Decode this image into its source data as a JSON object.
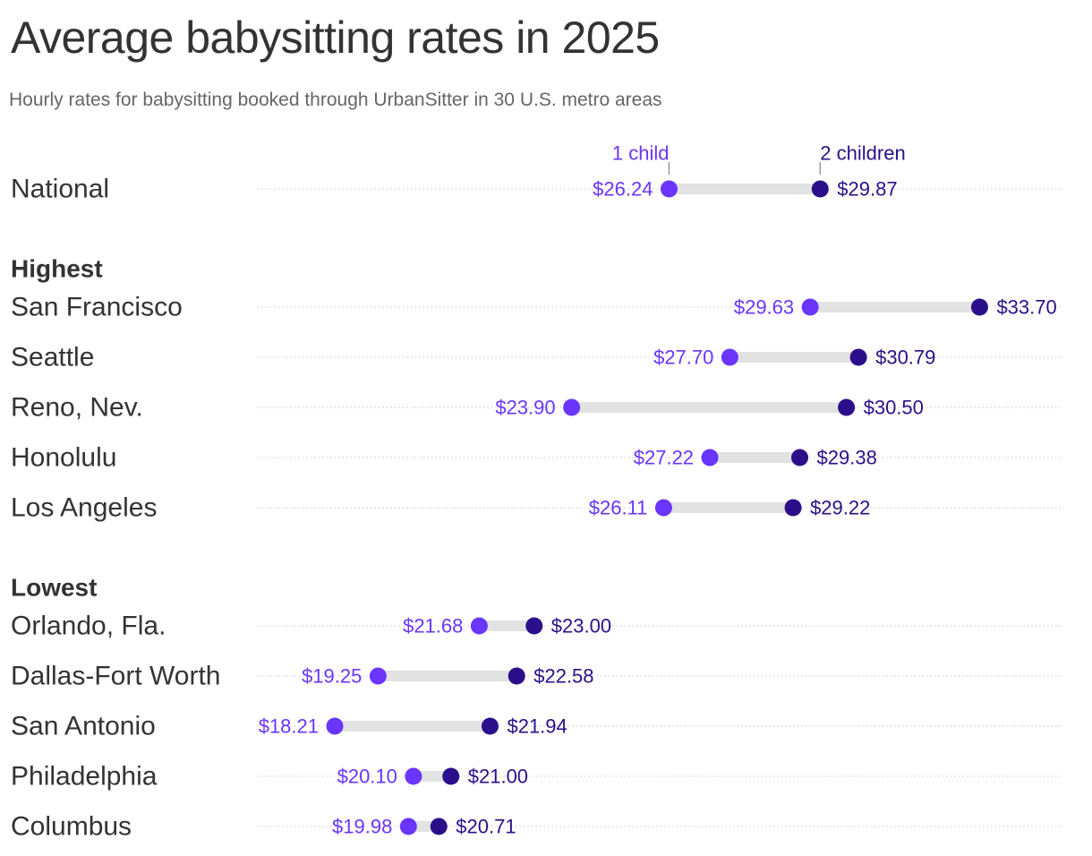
{
  "title": "Average babysitting rates in 2025",
  "subtitle": "Hourly rates for babysitting booked through UrbanSitter in 30 U.S. metro areas",
  "colors": {
    "one_child": "#6a35ff",
    "two_children": "#2b0f8a",
    "bar": "#e2e2e2",
    "gridline": "#c8c8c8",
    "text": "#333333"
  },
  "chart_data": {
    "type": "dumbbell",
    "series": [
      {
        "name": "1 child",
        "color": "#6a35ff"
      },
      {
        "name": "2 children",
        "color": "#2b0f8a"
      }
    ],
    "legend_placement": "above National row, labeling each dot",
    "groups": [
      {
        "heading": "",
        "rows": [
          {
            "label": "National",
            "one_child": 26.24,
            "two_children": 29.87
          }
        ]
      },
      {
        "heading": "Highest",
        "rows": [
          {
            "label": "San Francisco",
            "one_child": 29.63,
            "two_children": 33.7
          },
          {
            "label": "Seattle",
            "one_child": 27.7,
            "two_children": 30.79
          },
          {
            "label": "Reno, Nev.",
            "one_child": 23.9,
            "two_children": 30.5
          },
          {
            "label": "Honolulu",
            "one_child": 27.22,
            "two_children": 29.38
          },
          {
            "label": "Los Angeles",
            "one_child": 26.11,
            "two_children": 29.22
          }
        ]
      },
      {
        "heading": "Lowest",
        "rows": [
          {
            "label": "Orlando, Fla.",
            "one_child": 21.68,
            "two_children": 23.0
          },
          {
            "label": "Dallas-Fort Worth",
            "one_child": 19.25,
            "two_children": 22.58
          },
          {
            "label": "San Antonio",
            "one_child": 18.21,
            "two_children": 21.94
          },
          {
            "label": "Philadelphia",
            "one_child": 20.1,
            "two_children": 21.0
          },
          {
            "label": "Columbus",
            "one_child": 19.98,
            "two_children": 20.71
          }
        ]
      }
    ],
    "value_format": "$0.00",
    "gridlines": "dotted, per row"
  }
}
